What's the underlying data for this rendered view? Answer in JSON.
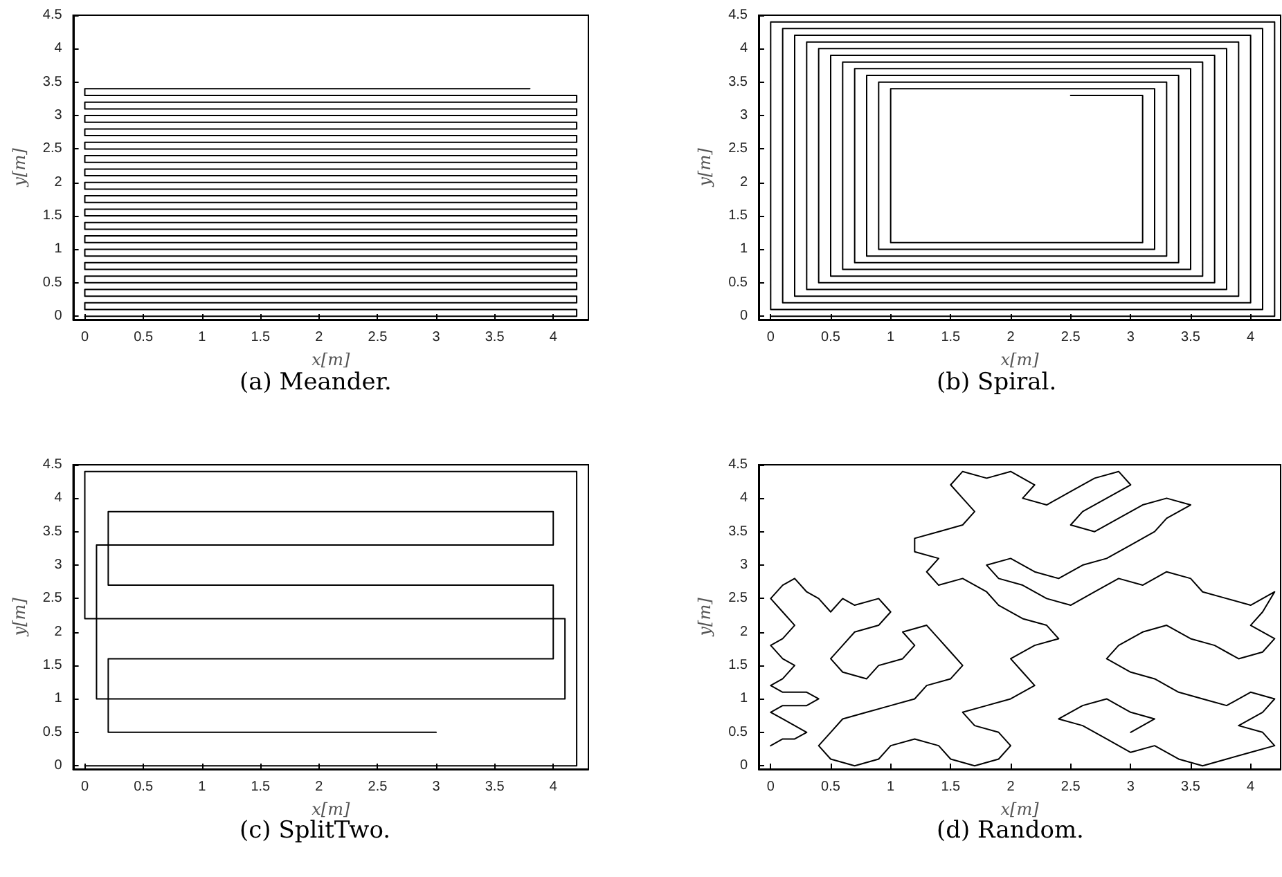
{
  "chart_data": [
    {
      "type": "line",
      "annotations": [
        "(a) Meander."
      ],
      "xlabel": "x[m]",
      "ylabel": "y[m]",
      "color": "#000000",
      "xlim": [
        -0.1,
        4.3
      ],
      "ylim": [
        -0.05,
        4.5
      ],
      "xticks": [
        0,
        0.5,
        1,
        1.5,
        2,
        2.5,
        3,
        3.5,
        4
      ],
      "yticks": [
        0,
        0.5,
        1,
        1.5,
        2,
        2.5,
        3,
        3.5,
        4,
        4.5
      ],
      "x": [
        0,
        4.2,
        4.2,
        0,
        0,
        4.2,
        4.2,
        0,
        0,
        4.2,
        4.2,
        0,
        0,
        4.2,
        4.2,
        0,
        0,
        4.2,
        4.2,
        0,
        0,
        4.2,
        4.2,
        0,
        0,
        4.2,
        4.2,
        0,
        0,
        4.2,
        4.2,
        0,
        0,
        4.2,
        4.2,
        0,
        0,
        4.2,
        4.2,
        0,
        0,
        4.2,
        4.2,
        0,
        0,
        4.2,
        4.2,
        0,
        0,
        4.2,
        4.2,
        0,
        0,
        4.2,
        4.2,
        0,
        0,
        4.2,
        4.2,
        0,
        0,
        4.2,
        4.2,
        0,
        0,
        4.2,
        4.2,
        0,
        0,
        3.8
      ],
      "values": [
        0,
        0,
        0.1,
        0.1,
        0.2,
        0.2,
        0.3,
        0.3,
        0.4,
        0.4,
        0.5,
        0.5,
        0.6,
        0.6,
        0.7,
        0.7,
        0.8,
        0.8,
        0.9,
        0.9,
        1.0,
        1.0,
        1.1,
        1.1,
        1.2,
        1.2,
        1.3,
        1.3,
        1.4,
        1.4,
        1.5,
        1.5,
        1.6,
        1.6,
        1.7,
        1.7,
        1.8,
        1.8,
        1.9,
        1.9,
        2.0,
        2.0,
        2.1,
        2.1,
        2.2,
        2.2,
        2.3,
        2.3,
        2.4,
        2.4,
        2.5,
        2.5,
        2.6,
        2.6,
        2.7,
        2.7,
        2.8,
        2.8,
        2.9,
        2.9,
        3.0,
        3.0,
        3.1,
        3.1,
        3.2,
        3.2,
        3.3,
        3.3,
        3.4,
        3.4
      ]
    },
    {
      "type": "line",
      "annotations": [
        "(b) Spiral."
      ],
      "xlabel": "x[m]",
      "ylabel": "y[m]",
      "color": "#000000",
      "xlim": [
        -0.1,
        4.25
      ],
      "ylim": [
        -0.05,
        4.5
      ],
      "xticks": [
        0,
        0.5,
        1,
        1.5,
        2,
        2.5,
        3,
        3.5,
        4
      ],
      "yticks": [
        0,
        0.5,
        1,
        1.5,
        2,
        2.5,
        3,
        3.5,
        4,
        4.5
      ],
      "x": [
        0,
        4.2,
        4.2,
        0,
        0,
        4.1,
        4.1,
        0.1,
        0.1,
        4.0,
        4.0,
        0.2,
        0.2,
        3.9,
        3.9,
        0.3,
        0.3,
        3.8,
        3.8,
        0.4,
        0.4,
        3.7,
        3.7,
        0.5,
        0.5,
        3.6,
        3.6,
        0.6,
        0.6,
        3.5,
        3.5,
        0.7,
        0.7,
        3.4,
        3.4,
        0.8,
        0.8,
        3.3,
        3.3,
        0.9,
        0.9,
        3.2,
        3.2,
        1.0,
        1.0,
        3.1,
        3.1,
        2.5
      ],
      "values": [
        0,
        0,
        4.4,
        4.4,
        0.1,
        0.1,
        4.3,
        4.3,
        0.2,
        0.2,
        4.2,
        4.2,
        0.3,
        0.3,
        4.1,
        4.1,
        0.4,
        0.4,
        4.0,
        4.0,
        0.5,
        0.5,
        3.9,
        3.9,
        0.6,
        0.6,
        3.8,
        3.8,
        0.7,
        0.7,
        3.7,
        3.7,
        0.8,
        0.8,
        3.6,
        3.6,
        0.9,
        0.9,
        3.5,
        3.5,
        1.0,
        1.0,
        3.4,
        3.4,
        1.1,
        1.1,
        3.3,
        3.3
      ]
    },
    {
      "type": "line",
      "annotations": [
        "(c) SplitTwo."
      ],
      "xlabel": "x[m]",
      "ylabel": "y[m]",
      "color": "#000000",
      "xlim": [
        -0.1,
        4.3
      ],
      "ylim": [
        -0.05,
        4.5
      ],
      "xticks": [
        0,
        0.5,
        1,
        1.5,
        2,
        2.5,
        3,
        3.5,
        4
      ],
      "yticks": [
        0,
        0.5,
        1,
        1.5,
        2,
        2.5,
        3,
        3.5,
        4,
        4.5
      ],
      "x": [
        0,
        4.2,
        4.2,
        0,
        0,
        4.1,
        4.1,
        0.1,
        0.1,
        4.0,
        4.0,
        0.2,
        0.2,
        4.0,
        4.0,
        0.2,
        0.2,
        3.0
      ],
      "values": [
        0,
        0,
        4.4,
        4.4,
        2.2,
        2.2,
        1.0,
        1.0,
        3.3,
        3.3,
        3.8,
        3.8,
        2.7,
        2.7,
        1.6,
        1.6,
        0.5,
        0.5
      ]
    },
    {
      "type": "line",
      "annotations": [
        "(d) Random."
      ],
      "xlabel": "x[m]",
      "ylabel": "y[m]",
      "color": "#000000",
      "xlim": [
        -0.1,
        4.25
      ],
      "ylim": [
        -0.05,
        4.5
      ],
      "xticks": [
        0,
        0.5,
        1,
        1.5,
        2,
        2.5,
        3,
        3.5,
        4
      ],
      "yticks": [
        0,
        0.5,
        1,
        1.5,
        2,
        2.5,
        3,
        3.5,
        4,
        4.5
      ],
      "x": [
        0,
        0.1,
        0.2,
        0.3,
        0.2,
        0.1,
        0,
        0.1,
        0.3,
        0.4,
        0.3,
        0.1,
        0,
        0.1,
        0.2,
        0.1,
        0,
        0.1,
        0.2,
        0.1,
        0,
        0.1,
        0.2,
        0.3,
        0.4,
        0.5,
        0.6,
        0.7,
        0.9,
        1.0,
        0.9,
        0.7,
        0.6,
        0.5,
        0.6,
        0.8,
        0.9,
        1.1,
        1.2,
        1.1,
        1.3,
        1.4,
        1.5,
        1.6,
        1.5,
        1.3,
        1.2,
        1.0,
        0.8,
        0.6,
        0.5,
        0.4,
        0.5,
        0.7,
        0.9,
        1.0,
        1.2,
        1.4,
        1.5,
        1.7,
        1.9,
        2.0,
        1.9,
        1.7,
        1.6,
        1.8,
        2.0,
        2.2,
        2.1,
        2.0,
        2.2,
        2.4,
        2.3,
        2.1,
        1.9,
        1.8,
        1.6,
        1.4,
        1.3,
        1.4,
        1.2,
        1.2,
        1.4,
        1.6,
        1.7,
        1.6,
        1.5,
        1.6,
        1.8,
        2.0,
        2.2,
        2.1,
        2.3,
        2.5,
        2.7,
        2.9,
        3.0,
        2.8,
        2.6,
        2.5,
        2.7,
        2.9,
        3.1,
        3.3,
        3.5,
        3.3,
        3.2,
        3.0,
        2.8,
        2.6,
        2.4,
        2.2,
        2.0,
        1.8,
        1.9,
        2.1,
        2.3,
        2.5,
        2.7,
        2.9,
        3.1,
        3.3,
        3.5,
        3.6,
        3.8,
        4.0,
        4.2,
        4.1,
        4.0,
        4.2,
        4.1,
        3.9,
        3.7,
        3.5,
        3.3,
        3.1,
        2.9,
        2.8,
        3.0,
        3.2,
        3.4,
        3.6,
        3.8,
        4.0,
        4.2,
        4.1,
        3.9,
        4.1,
        4.2,
        4.0,
        3.8,
        3.6,
        3.4,
        3.2,
        3.0,
        2.8,
        2.6,
        2.4,
        2.6,
        2.8,
        3.0,
        3.2,
        3.0
      ],
      "values": [
        0.3,
        0.4,
        0.4,
        0.5,
        0.6,
        0.7,
        0.8,
        0.9,
        0.9,
        1.0,
        1.1,
        1.1,
        1.2,
        1.3,
        1.5,
        1.6,
        1.8,
        1.9,
        2.1,
        2.3,
        2.5,
        2.7,
        2.8,
        2.6,
        2.5,
        2.3,
        2.5,
        2.4,
        2.5,
        2.3,
        2.1,
        2.0,
        1.8,
        1.6,
        1.4,
        1.3,
        1.5,
        1.6,
        1.8,
        2.0,
        2.1,
        1.9,
        1.7,
        1.5,
        1.3,
        1.2,
        1.0,
        0.9,
        0.8,
        0.7,
        0.5,
        0.3,
        0.1,
        0.0,
        0.1,
        0.3,
        0.4,
        0.3,
        0.1,
        0.0,
        0.1,
        0.3,
        0.5,
        0.6,
        0.8,
        0.9,
        1.0,
        1.2,
        1.4,
        1.6,
        1.8,
        1.9,
        2.1,
        2.2,
        2.4,
        2.6,
        2.8,
        2.7,
        2.9,
        3.1,
        3.2,
        3.4,
        3.5,
        3.6,
        3.8,
        4.0,
        4.2,
        4.4,
        4.3,
        4.4,
        4.2,
        4.0,
        3.9,
        4.1,
        4.3,
        4.4,
        4.2,
        4.0,
        3.8,
        3.6,
        3.5,
        3.7,
        3.9,
        4.0,
        3.9,
        3.7,
        3.5,
        3.3,
        3.1,
        3.0,
        2.8,
        2.9,
        3.1,
        3.0,
        2.8,
        2.7,
        2.5,
        2.4,
        2.6,
        2.8,
        2.7,
        2.9,
        2.8,
        2.6,
        2.5,
        2.4,
        2.6,
        2.3,
        2.1,
        1.9,
        1.7,
        1.6,
        1.8,
        1.9,
        2.1,
        2.0,
        1.8,
        1.6,
        1.4,
        1.3,
        1.1,
        1.0,
        0.9,
        1.1,
        1.0,
        0.8,
        0.6,
        0.5,
        0.3,
        0.2,
        0.1,
        0.0,
        0.1,
        0.3,
        0.2,
        0.4,
        0.6,
        0.7,
        0.9,
        1.0,
        0.8,
        0.7,
        0.5
      ]
    }
  ]
}
